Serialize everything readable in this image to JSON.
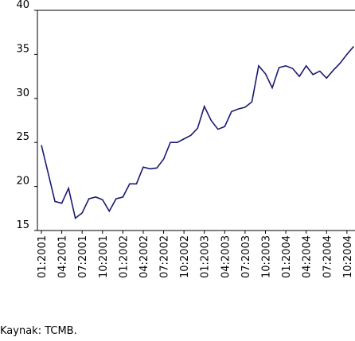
{
  "chart_data": {
    "type": "line",
    "categories": [
      "01:2001",
      null,
      null,
      "04:2001",
      null,
      null,
      "07:2001",
      null,
      null,
      "10:2001",
      null,
      null,
      "01:2002",
      null,
      null,
      "04:2002",
      null,
      null,
      "07:2002",
      null,
      null,
      "10:2002",
      null,
      null,
      "01:2003",
      null,
      null,
      "04:2003",
      null,
      null,
      "07:2003",
      null,
      null,
      "10:2003",
      null,
      null,
      "01:2004",
      null,
      null,
      "04:2004",
      null,
      null,
      "07:2004",
      null,
      null,
      "10:2004",
      null
    ],
    "values": [
      24.7,
      21.5,
      18.3,
      18.1,
      19.8,
      16.4,
      17.0,
      18.6,
      18.8,
      18.5,
      17.2,
      18.6,
      18.8,
      20.3,
      20.3,
      22.2,
      22.0,
      22.1,
      23.1,
      25.0,
      25.0,
      25.4,
      25.8,
      26.6,
      29.1,
      27.5,
      26.5,
      26.8,
      28.5,
      28.8,
      29.0,
      29.6,
      33.7,
      32.8,
      31.2,
      33.5,
      33.7,
      33.4,
      32.5,
      33.7,
      32.7,
      33.1,
      32.3,
      33.2,
      34.0,
      35.0,
      35.9
    ],
    "color": "#1a1a73",
    "ylim": [
      15,
      40
    ],
    "yticks": [
      15,
      20,
      25,
      30,
      35,
      40
    ],
    "grid": false,
    "source": "Kaynak: TCMB."
  }
}
